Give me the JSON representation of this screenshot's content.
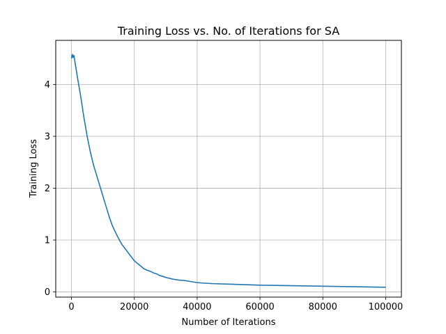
{
  "chart_data": {
    "type": "line",
    "title": "Training Loss vs. No. of Iterations for SA",
    "xlabel": "Number of Iterations",
    "ylabel": "Training Loss",
    "xlim": [
      -5000,
      105000
    ],
    "ylim": [
      -0.1,
      4.85
    ],
    "xticks": [
      0,
      20000,
      40000,
      60000,
      80000,
      100000
    ],
    "xtick_labels": [
      "0",
      "20000",
      "40000",
      "60000",
      "80000",
      "100000"
    ],
    "yticks": [
      0,
      1,
      2,
      3,
      4
    ],
    "ytick_labels": [
      "0",
      "1",
      "2",
      "3",
      "4"
    ],
    "grid": true,
    "colors": {
      "line": "#1f77b4",
      "grid": "#b0b0b0",
      "axes": "#000000"
    },
    "series": [
      {
        "x": [
          0,
          300,
          500,
          800,
          1200,
          2000,
          3000,
          4000,
          5000,
          6000,
          7000,
          8000,
          9000,
          10000,
          11000,
          12000,
          13000,
          14000,
          15000,
          16000,
          17000,
          18000,
          19000,
          20000,
          21000,
          22000,
          23000,
          24000,
          25000,
          26000,
          27000,
          28000,
          29000,
          30000,
          32000,
          34000,
          36000,
          38000,
          40000,
          42000,
          45000,
          50000,
          55000,
          60000,
          65000,
          70000,
          75000,
          80000,
          85000,
          90000,
          95000,
          100000
        ],
        "values": [
          4.5,
          4.58,
          4.52,
          4.56,
          4.4,
          4.1,
          3.75,
          3.35,
          3.0,
          2.7,
          2.45,
          2.25,
          2.05,
          1.85,
          1.65,
          1.45,
          1.28,
          1.15,
          1.03,
          0.92,
          0.84,
          0.76,
          0.68,
          0.6,
          0.55,
          0.5,
          0.45,
          0.42,
          0.4,
          0.37,
          0.35,
          0.32,
          0.3,
          0.28,
          0.25,
          0.23,
          0.22,
          0.2,
          0.18,
          0.17,
          0.16,
          0.15,
          0.14,
          0.13,
          0.125,
          0.12,
          0.115,
          0.11,
          0.105,
          0.1,
          0.095,
          0.09
        ]
      }
    ]
  }
}
